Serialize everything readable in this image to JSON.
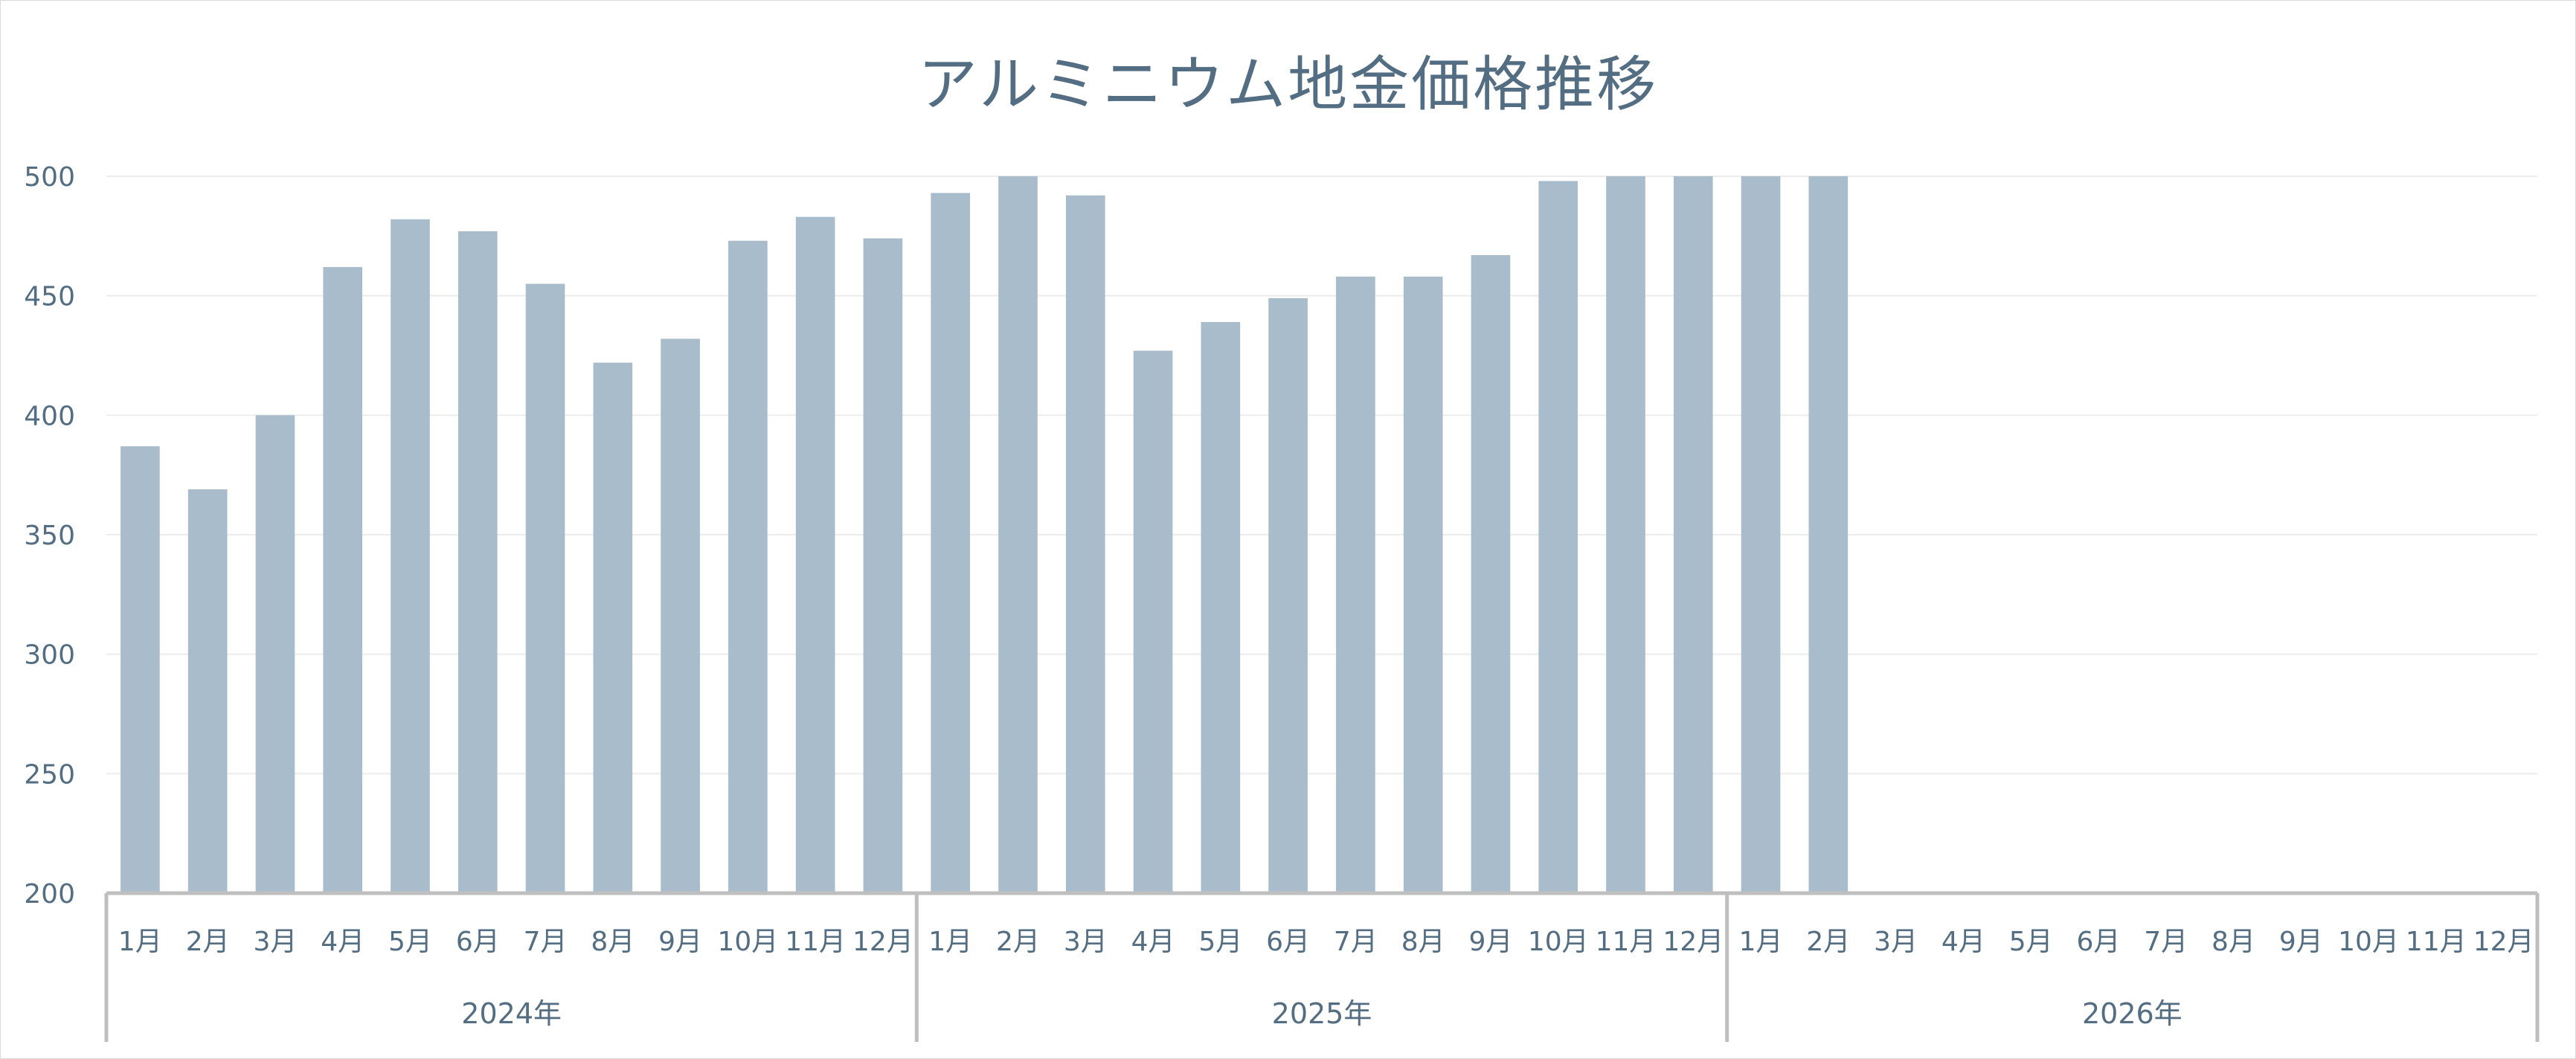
{
  "chart_data": {
    "type": "bar",
    "title": "アルミニウム地金価格推移",
    "xlabel": "",
    "ylabel": "",
    "ylim": [
      200,
      500
    ],
    "y_ticks": [
      "500",
      "450",
      "400",
      "350",
      "300",
      "250",
      "200"
    ],
    "grid": true,
    "legend": "none",
    "colors": {
      "bar": "#a9bccb",
      "grid": "#ececec",
      "axis": "#bfbfbf",
      "text": "#536d83"
    },
    "groups": [
      {
        "label": "2024年",
        "months": [
          "1月",
          "2月",
          "3月",
          "4月",
          "5月",
          "6月",
          "7月",
          "8月",
          "9月",
          "10月",
          "11月",
          "12月"
        ]
      },
      {
        "label": "2025年",
        "months": [
          "1月",
          "2月",
          "3月",
          "4月",
          "5月",
          "6月",
          "7月",
          "8月",
          "9月",
          "10月",
          "11月",
          "12月"
        ]
      },
      {
        "label": "2026年",
        "months": [
          "1月",
          "2月",
          "3月",
          "4月",
          "5月",
          "6月",
          "7月",
          "8月",
          "9月",
          "10月",
          "11月",
          "12月"
        ]
      }
    ],
    "series": [
      {
        "values": [
          387,
          369,
          400,
          462,
          482,
          477,
          455,
          422,
          432,
          473,
          483,
          474,
          493,
          500,
          492,
          427,
          439,
          449,
          458,
          458,
          467,
          498,
          500,
          500,
          500,
          500,
          null,
          null,
          null,
          null,
          null,
          null,
          null,
          null,
          null,
          null
        ]
      }
    ]
  }
}
